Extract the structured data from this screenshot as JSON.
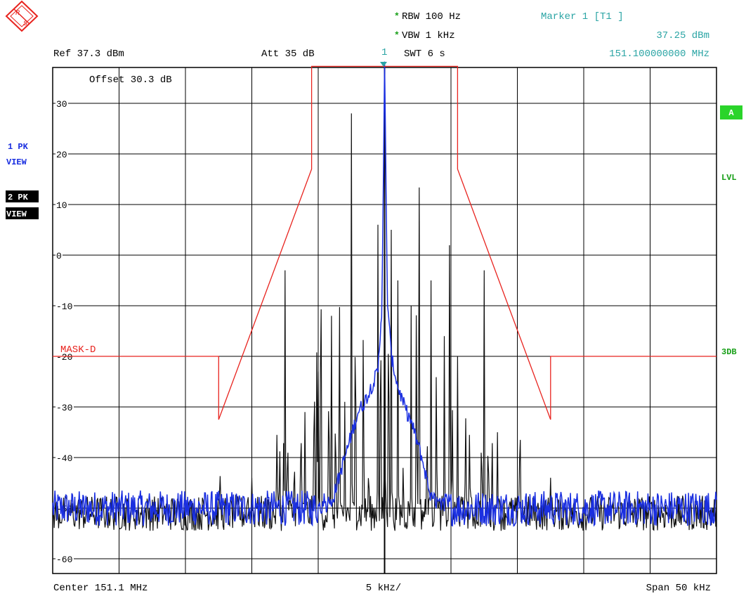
{
  "header": {
    "rbw": "RBW  100 Hz",
    "vbw": "VBW  1 kHz",
    "swt": "SWT  6 s",
    "star": "*",
    "ref": "Ref  37.3 dBm",
    "att": "Att  35 dB",
    "marker_num": "1",
    "marker_title": "Marker 1 [T1 ]",
    "marker_level": "37.25 dBm",
    "marker_freq": "151.100000000 MHz",
    "offset": "Offset  30.3 dB"
  },
  "left_labels": {
    "trace1_mode": "1 PK",
    "trace1_view": "VIEW",
    "trace2_mode": "2 PK",
    "trace2_view": "VIEW"
  },
  "right_labels": {
    "a": "A",
    "lvl": "LVL",
    "db3": "3DB"
  },
  "footer": {
    "center": "Center  151.1 MHz",
    "div": "5 kHz/",
    "span": "Span  50 kHz"
  },
  "colors": {
    "trace1": "#1a2fe0",
    "trace2": "#111111",
    "mask": "#e8231e",
    "marker": "#2aa4a4",
    "green": "#2ad42a",
    "grid": "#000000"
  },
  "chart_data": {
    "type": "line",
    "x_unit": "kHz offset from center",
    "xlim": [
      -25,
      25
    ],
    "ylim": [
      -63,
      38
    ],
    "y_ticks": [
      30,
      20,
      10,
      0,
      -10,
      -20,
      -30,
      -40,
      -50,
      -60
    ],
    "y_tick_labels": [
      "30",
      "20",
      "10",
      "0",
      "-10",
      "-20",
      "-30",
      "-40",
      "-50",
      "-60"
    ],
    "grid": true,
    "mask": {
      "name": "MASK-D",
      "points": [
        [
          -25,
          -20
        ],
        [
          -12.5,
          -20
        ],
        [
          -12.5,
          -32.5
        ],
        [
          -5.5,
          17
        ],
        [
          -5.5,
          37.3
        ],
        [
          5.5,
          37.3
        ],
        [
          5.5,
          17
        ],
        [
          12.5,
          -32.5
        ],
        [
          12.5,
          -20
        ],
        [
          25,
          -20
        ]
      ]
    },
    "trace1_noise": -50,
    "trace1_envelope": [
      [
        -5.0,
        -50
      ],
      [
        -4.0,
        -49
      ],
      [
        -3.0,
        -40
      ],
      [
        -2.0,
        -31
      ],
      [
        -1.5,
        -29
      ],
      [
        -1.0,
        -26
      ],
      [
        -0.5,
        -23
      ],
      [
        -0.2,
        -10
      ],
      [
        0,
        37.25
      ],
      [
        0.2,
        -8
      ],
      [
        0.5,
        -20
      ],
      [
        1.0,
        -26
      ],
      [
        1.5,
        -30
      ],
      [
        2.0,
        -33
      ],
      [
        2.8,
        -40
      ],
      [
        3.5,
        -48
      ],
      [
        4.5,
        -50
      ]
    ],
    "trace2_noise": -51,
    "trace2_peaks": [
      [
        -12.4,
        -42
      ],
      [
        -10.3,
        -46
      ],
      [
        -10.0,
        -44
      ],
      [
        -9.7,
        -47
      ],
      [
        -8.1,
        -32
      ],
      [
        -7.9,
        -36
      ],
      [
        -7.6,
        -34
      ],
      [
        -7.3,
        -32
      ],
      [
        -7.5,
        -3
      ],
      [
        -6.8,
        -38
      ],
      [
        -6.3,
        -29
      ],
      [
        -6.0,
        -31
      ],
      [
        -5.3,
        -16
      ],
      [
        -5.1,
        -12
      ],
      [
        -5.0,
        -23
      ],
      [
        -4.8,
        13
      ],
      [
        -4.2,
        -19
      ],
      [
        -4.0,
        -12
      ],
      [
        -3.7,
        -26
      ],
      [
        -3.4,
        -1
      ],
      [
        -3.0,
        -29
      ],
      [
        -2.5,
        28
      ],
      [
        -2.2,
        -2
      ],
      [
        -1.6,
        -9
      ],
      [
        -1.2,
        -40
      ],
      [
        -0.5,
        6
      ],
      [
        -0.3,
        -3
      ],
      [
        0.0,
        36
      ],
      [
        0.3,
        -1
      ],
      [
        0.5,
        5
      ],
      [
        1.0,
        -5
      ],
      [
        1.4,
        -40
      ],
      [
        2.0,
        -10
      ],
      [
        2.4,
        -3
      ],
      [
        2.6,
        28
      ],
      [
        3.2,
        -30
      ],
      [
        3.5,
        -5
      ],
      [
        3.9,
        -18
      ],
      [
        4.5,
        -16
      ],
      [
        4.9,
        14
      ],
      [
        5.1,
        -26
      ],
      [
        5.5,
        -20
      ],
      [
        6.1,
        -28
      ],
      [
        6.4,
        -32
      ],
      [
        7.3,
        -32
      ],
      [
        7.5,
        -3
      ],
      [
        7.8,
        -33
      ],
      [
        8.1,
        -34
      ],
      [
        8.5,
        -35
      ],
      [
        10.2,
        -28
      ],
      [
        12.5,
        -44
      ]
    ]
  }
}
